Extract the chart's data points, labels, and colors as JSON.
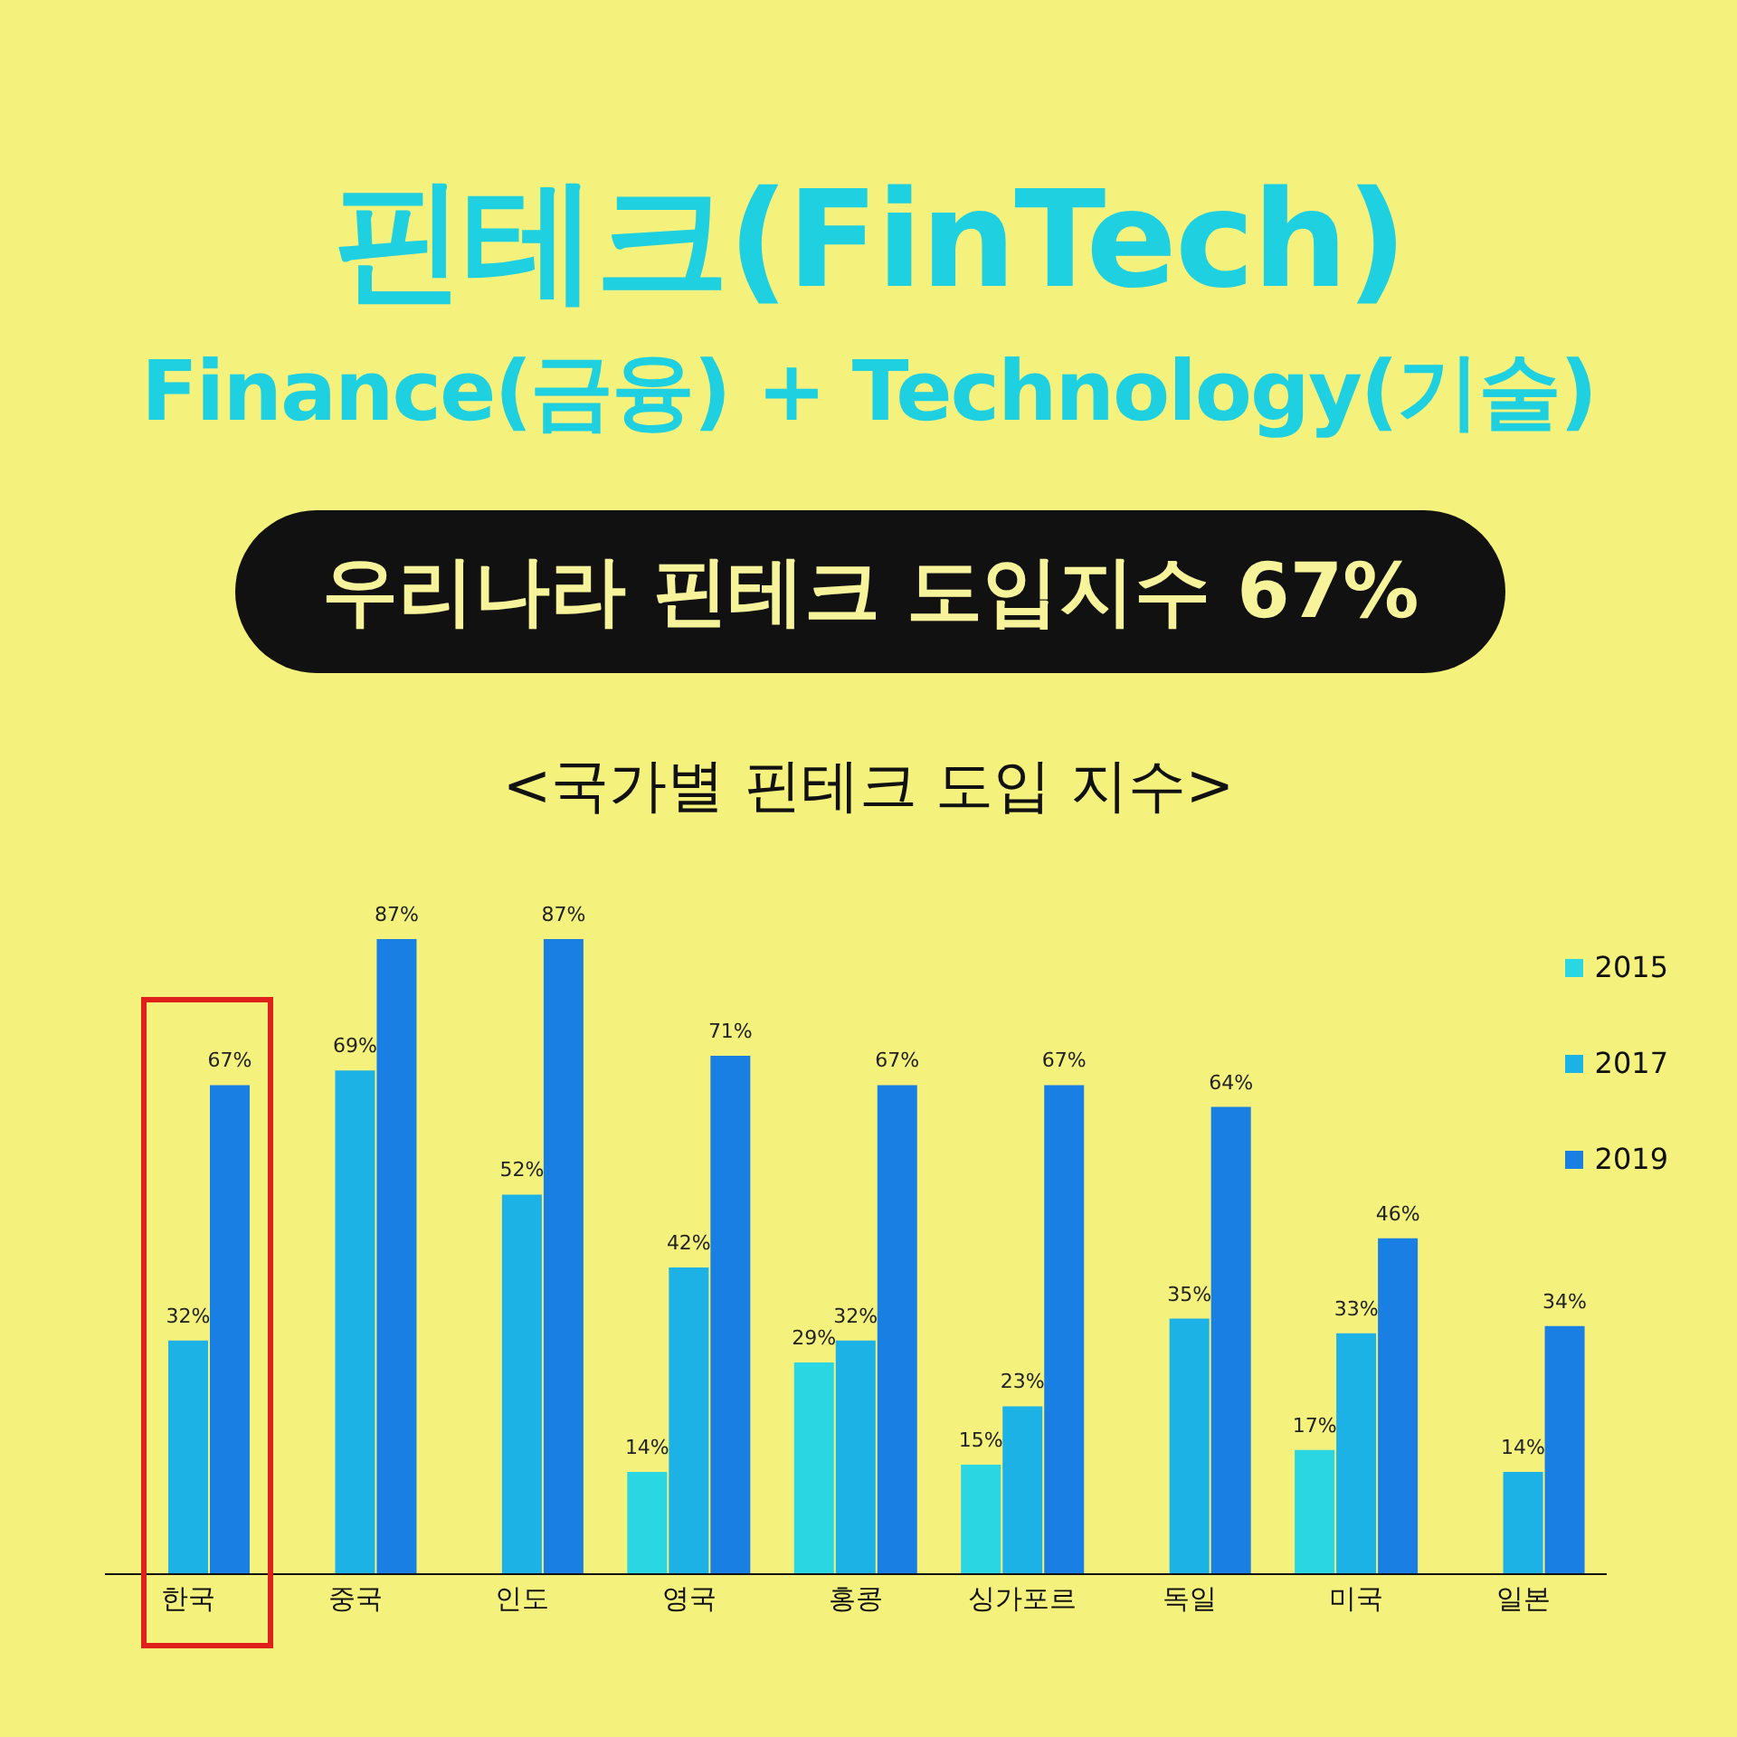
{
  "chart_data": {
    "type": "bar",
    "title": "핀테크(FinTech)",
    "subtitle": "Finance(금융) + Technology(기술)",
    "annotations": [
      "우리나라 핀테크 도입지수 67%",
      "<국가별 핀테크 도입 지수>"
    ],
    "categories": [
      "한국",
      "중국",
      "인도",
      "영국",
      "홍콩",
      "싱가포르",
      "독일",
      "미국",
      "일본"
    ],
    "series": [
      {
        "name": "2015",
        "color": "#2ad6e2",
        "values": [
          null,
          null,
          null,
          14,
          29,
          15,
          null,
          17,
          null
        ],
        "value_labels": [
          null,
          null,
          null,
          "14%",
          "29%",
          "15%",
          null,
          "17%",
          null
        ]
      },
      {
        "name": "2017",
        "color": "#1cb2e6",
        "values": [
          32,
          69,
          52,
          42,
          32,
          23,
          35,
          33,
          14
        ],
        "value_labels": [
          "32%",
          "69%",
          "52%",
          "42%",
          "32%",
          "23%",
          "35%",
          "33%",
          "14%"
        ]
      },
      {
        "name": "2019",
        "color": "#1a7fe2",
        "values": [
          67,
          87,
          87,
          71,
          67,
          67,
          64,
          46,
          34
        ],
        "value_labels": [
          "67%",
          "87%",
          "87%",
          "71%",
          "67%",
          "67%",
          "64%",
          "46%",
          "34%"
        ]
      }
    ],
    "legend": "top right",
    "grid": false
  }
}
